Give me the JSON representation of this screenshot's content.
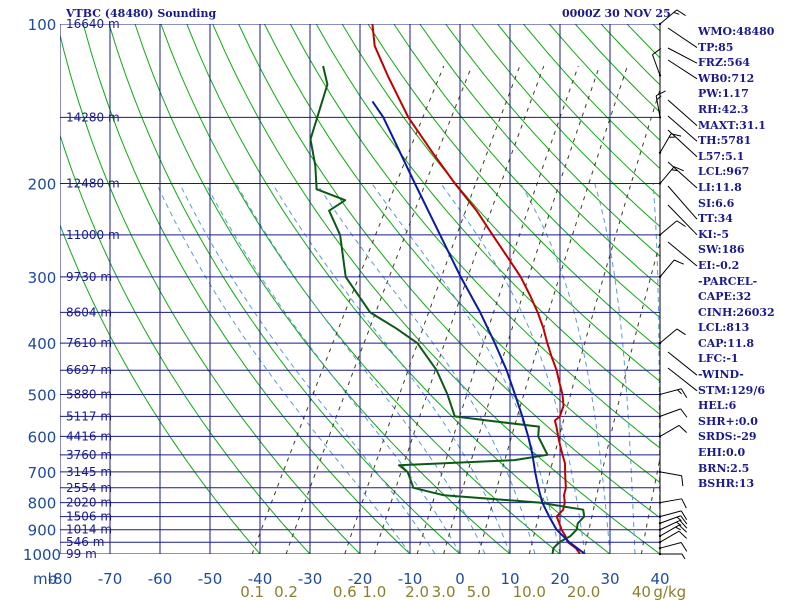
{
  "header": {
    "station": "VTBC (48480) Sounding",
    "time": "0000Z 30 NOV 25"
  },
  "chart_data": {
    "type": "skew-t log-p sounding",
    "title": "VTBC (48480) Sounding",
    "subtitle": "0000Z 30 NOV 25",
    "y_axis_unit": "mb",
    "pressure_range": [
      1000,
      100
    ],
    "pressure_ticks": [
      100,
      200,
      300,
      400,
      500,
      600,
      700,
      800,
      900,
      1000
    ],
    "temperature_range": [
      -80,
      40
    ],
    "temperature_ticks": [
      -80,
      -70,
      -60,
      -50,
      -40,
      -30,
      -20,
      -10,
      0,
      10,
      20,
      30,
      40
    ],
    "temperature_tick_labels": [
      "-80",
      "-70",
      "-60",
      "-50",
      "-40",
      "-30",
      "-20",
      "-10",
      "0",
      "10",
      "20",
      "30",
      "40"
    ],
    "mixing_ratio_labels": [
      "0.1",
      "0.2",
      "0.6",
      "1.0",
      "2.0",
      "3.0",
      "5.0",
      "10.0",
      "20.0",
      "40"
    ],
    "mixing_ratio_unit": "g/kg",
    "height_labels": [
      {
        "p": 100,
        "label": "16640 m"
      },
      {
        "p": 150,
        "label": "14280 m"
      },
      {
        "p": 200,
        "label": "12480 m"
      },
      {
        "p": 250,
        "label": "11000 m"
      },
      {
        "p": 300,
        "label": "9730 m"
      },
      {
        "p": 350,
        "label": "8604 m"
      },
      {
        "p": 400,
        "label": "7610 m"
      },
      {
        "p": 450,
        "label": "6697 m"
      },
      {
        "p": 500,
        "label": "5880 m"
      },
      {
        "p": 550,
        "label": "5117 m"
      },
      {
        "p": 600,
        "label": "4416 m"
      },
      {
        "p": 650,
        "label": "3760 m"
      },
      {
        "p": 700,
        "label": "3145 m"
      },
      {
        "p": 750,
        "label": "2554 m"
      },
      {
        "p": 800,
        "label": "2020 m"
      },
      {
        "p": 850,
        "label": "1506 m"
      },
      {
        "p": 900,
        "label": "1014 m"
      },
      {
        "p": 950,
        "label": "546 m"
      },
      {
        "p": 1000,
        "label": "99 m"
      }
    ],
    "series": [
      {
        "name": "Temperature",
        "color": "#c00000",
        "points": [
          {
            "p": 1000,
            "t": 24.0
          },
          {
            "p": 975,
            "t": 22.5
          },
          {
            "p": 950,
            "t": 20.2
          },
          {
            "p": 925,
            "t": 19.0
          },
          {
            "p": 900,
            "t": 17.5
          },
          {
            "p": 875,
            "t": 16.3
          },
          {
            "p": 850,
            "t": 15.0
          },
          {
            "p": 825,
            "t": 15.5
          },
          {
            "p": 800,
            "t": 15.0
          },
          {
            "p": 775,
            "t": 14.0
          },
          {
            "p": 750,
            "t": 13.5
          },
          {
            "p": 725,
            "t": 12.5
          },
          {
            "p": 700,
            "t": 11.5
          },
          {
            "p": 675,
            "t": 10.5
          },
          {
            "p": 650,
            "t": 9.0
          },
          {
            "p": 625,
            "t": 7.5
          },
          {
            "p": 600,
            "t": 6.0
          },
          {
            "p": 575,
            "t": 4.5
          },
          {
            "p": 560,
            "t": 3.5
          },
          {
            "p": 550,
            "t": 4.0
          },
          {
            "p": 525,
            "t": 3.5
          },
          {
            "p": 500,
            "t": 2.0
          },
          {
            "p": 475,
            "t": 0.0
          },
          {
            "p": 450,
            "t": -2.0
          },
          {
            "p": 425,
            "t": -4.5
          },
          {
            "p": 400,
            "t": -7.0
          },
          {
            "p": 375,
            "t": -9.5
          },
          {
            "p": 350,
            "t": -12.5
          },
          {
            "p": 325,
            "t": -16.0
          },
          {
            "p": 300,
            "t": -20.0
          },
          {
            "p": 275,
            "t": -25.0
          },
          {
            "p": 250,
            "t": -30.5
          },
          {
            "p": 225,
            "t": -36.5
          },
          {
            "p": 200,
            "t": -44.0
          },
          {
            "p": 175,
            "t": -52.0
          },
          {
            "p": 150,
            "t": -61.0
          },
          {
            "p": 125,
            "t": -70.0
          },
          {
            "p": 110,
            "t": -76.0
          },
          {
            "p": 100,
            "t": -79.0
          }
        ]
      },
      {
        "name": "Dewpoint",
        "color": "#0b5a14",
        "points": [
          {
            "p": 1000,
            "t": 18.5
          },
          {
            "p": 975,
            "t": 18.0
          },
          {
            "p": 950,
            "t": 18.5
          },
          {
            "p": 925,
            "t": 20.0
          },
          {
            "p": 900,
            "t": 20.5
          },
          {
            "p": 875,
            "t": 20.0
          },
          {
            "p": 850,
            "t": 20.5
          },
          {
            "p": 825,
            "t": 19.5
          },
          {
            "p": 800,
            "t": 10.0
          },
          {
            "p": 775,
            "t": -10.0
          },
          {
            "p": 750,
            "t": -17.0
          },
          {
            "p": 700,
            "t": -20.0
          },
          {
            "p": 680,
            "t": -22.5
          },
          {
            "p": 665,
            "t": 0.0
          },
          {
            "p": 650,
            "t": 6.0
          },
          {
            "p": 600,
            "t": 2.0
          },
          {
            "p": 575,
            "t": 1.0
          },
          {
            "p": 560,
            "t": -10.0
          },
          {
            "p": 550,
            "t": -17.0
          },
          {
            "p": 500,
            "t": -21.0
          },
          {
            "p": 450,
            "t": -26.0
          },
          {
            "p": 400,
            "t": -33.0
          },
          {
            "p": 375,
            "t": -39.0
          },
          {
            "p": 350,
            "t": -46.0
          },
          {
            "p": 300,
            "t": -55.0
          },
          {
            "p": 250,
            "t": -61.0
          },
          {
            "p": 225,
            "t": -66.0
          },
          {
            "p": 215,
            "t": -64.0
          },
          {
            "p": 205,
            "t": -71.0
          },
          {
            "p": 185,
            "t": -74.0
          },
          {
            "p": 165,
            "t": -78.0
          },
          {
            "p": 130,
            "t": -81.0
          },
          {
            "p": 120,
            "t": -84.0
          }
        ]
      },
      {
        "name": "Parcel",
        "color": "#0a1aa6",
        "points": [
          {
            "p": 1000,
            "t": 25.0
          },
          {
            "p": 950,
            "t": 20.5
          },
          {
            "p": 900,
            "t": 16.5
          },
          {
            "p": 850,
            "t": 13.5
          },
          {
            "p": 800,
            "t": 10.5
          },
          {
            "p": 750,
            "t": 8.0
          },
          {
            "p": 700,
            "t": 5.5
          },
          {
            "p": 650,
            "t": 3.0
          },
          {
            "p": 600,
            "t": 0.0
          },
          {
            "p": 550,
            "t": -3.5
          },
          {
            "p": 500,
            "t": -7.5
          },
          {
            "p": 450,
            "t": -12.0
          },
          {
            "p": 400,
            "t": -17.5
          },
          {
            "p": 350,
            "t": -24.0
          },
          {
            "p": 300,
            "t": -32.0
          },
          {
            "p": 250,
            "t": -41.0
          },
          {
            "p": 200,
            "t": -52.0
          },
          {
            "p": 150,
            "t": -66.0
          },
          {
            "p": 140,
            "t": -70.0
          }
        ]
      }
    ],
    "wind_barbs": [
      {
        "p": 1000,
        "dir": 90,
        "speed": 5
      },
      {
        "p": 975,
        "dir": 75,
        "speed": 10
      },
      {
        "p": 950,
        "dir": 60,
        "speed": 10
      },
      {
        "p": 925,
        "dir": 60,
        "speed": 15
      },
      {
        "p": 900,
        "dir": 65,
        "speed": 15
      },
      {
        "p": 875,
        "dir": 70,
        "speed": 15
      },
      {
        "p": 850,
        "dir": 75,
        "speed": 10
      },
      {
        "p": 800,
        "dir": 80,
        "speed": 10
      },
      {
        "p": 700,
        "dir": 100,
        "speed": 10
      },
      {
        "p": 600,
        "dir": 60,
        "speed": 10
      },
      {
        "p": 550,
        "dir": 70,
        "speed": 10
      },
      {
        "p": 500,
        "dir": 75,
        "speed": 15
      },
      {
        "p": 400,
        "dir": 50,
        "speed": 10
      },
      {
        "p": 300,
        "dir": 40,
        "speed": 10
      },
      {
        "p": 250,
        "dir": 50,
        "speed": 10
      },
      {
        "p": 200,
        "dir": 40,
        "speed": 15
      },
      {
        "p": 175,
        "dir": 30,
        "speed": 15
      },
      {
        "p": 150,
        "dir": 350,
        "speed": 15
      },
      {
        "p": 125,
        "dir": 340,
        "speed": 10
      },
      {
        "p": 100,
        "dir": 50,
        "speed": 15
      }
    ],
    "colors": {
      "grid": "#1a1a8c",
      "dry_adiabat": "#11a811",
      "moist_adiabat": "#5a9ad6",
      "mixing_ratio": "#3d3d1f",
      "axis_labels": "#1e4a9e",
      "mixing_labels": "#8a7f2c"
    }
  },
  "indices": [
    "WMO:48480",
    "TP:85",
    "FRZ:564",
    "WB0:712",
    "PW:1.17",
    "RH:42.3",
    "MAXT:31.1",
    "TH:5781",
    "L57:5.1",
    "LCL:967",
    "LI:11.8",
    "SI:6.6",
    "TT:34",
    "KI:-5",
    "SW:186",
    "EI:-0.2",
    "-PARCEL-",
    "CAPE:32",
    "CINH:26032",
    "LCL:813",
    "CAP:11.8",
    "LFC:-1",
    "-WIND-",
    "STM:129/6",
    "HEL:6",
    "SHR+:0.0",
    "SRDS:-29",
    "EHI:0.0",
    "BRN:2.5",
    "BSHR:13"
  ]
}
